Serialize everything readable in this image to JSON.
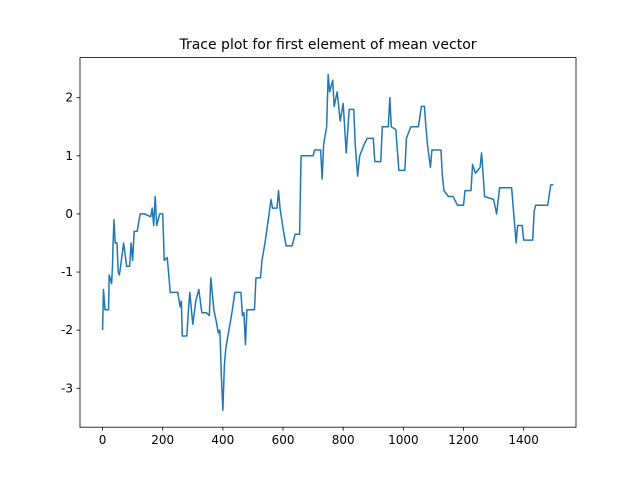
{
  "chart_data": {
    "type": "line",
    "title": "Trace plot for first element of mean vector",
    "x": [
      0,
      3,
      8,
      20,
      22,
      30,
      33,
      35,
      38,
      42,
      48,
      52,
      56,
      60,
      70,
      80,
      90,
      95,
      100,
      105,
      115,
      125,
      140,
      160,
      165,
      170,
      175,
      180,
      190,
      200,
      205,
      215,
      225,
      250,
      258,
      262,
      265,
      280,
      285,
      290,
      300,
      310,
      320,
      330,
      345,
      355,
      360,
      370,
      378,
      385,
      390,
      395,
      400,
      405,
      410,
      420,
      430,
      440,
      460,
      465,
      470,
      475,
      480,
      505,
      510,
      525,
      530,
      540,
      555,
      560,
      565,
      580,
      585,
      590,
      600,
      610,
      630,
      640,
      655,
      660,
      700,
      705,
      725,
      730,
      735,
      745,
      750,
      755,
      765,
      770,
      780,
      790,
      800,
      810,
      820,
      835,
      840,
      848,
      855,
      870,
      880,
      900,
      905,
      925,
      930,
      950,
      955,
      960,
      975,
      985,
      1005,
      1010,
      1025,
      1050,
      1060,
      1070,
      1075,
      1080,
      1090,
      1095,
      1125,
      1130,
      1135,
      1150,
      1165,
      1175,
      1180,
      1200,
      1205,
      1225,
      1230,
      1240,
      1255,
      1260,
      1265,
      1270,
      1300,
      1310,
      1320,
      1360,
      1375,
      1380,
      1395,
      1400,
      1430,
      1435,
      1440,
      1480,
      1490,
      1499
    ],
    "series": [
      {
        "color": "#1f77b4",
        "values": [
          -2.0,
          -1.3,
          -1.65,
          -1.65,
          -1.05,
          -1.2,
          -0.9,
          -0.5,
          -0.1,
          -0.5,
          -0.5,
          -1.0,
          -1.05,
          -0.9,
          -0.5,
          -0.9,
          -0.9,
          -0.5,
          -0.8,
          -0.3,
          -0.3,
          0.0,
          0.0,
          -0.05,
          0.1,
          -0.2,
          0.3,
          -0.2,
          0.0,
          0.0,
          -0.8,
          -0.75,
          -1.35,
          -1.35,
          -1.6,
          -1.5,
          -2.1,
          -2.1,
          -1.7,
          -1.35,
          -1.9,
          -1.5,
          -1.3,
          -1.7,
          -1.7,
          -1.75,
          -1.1,
          -1.65,
          -1.85,
          -2.05,
          -2.0,
          -2.8,
          -3.38,
          -2.6,
          -2.3,
          -2.0,
          -1.7,
          -1.35,
          -1.35,
          -1.75,
          -1.7,
          -2.25,
          -1.65,
          -1.65,
          -1.1,
          -1.1,
          -0.8,
          -0.5,
          0.05,
          0.25,
          0.1,
          0.1,
          0.4,
          0.1,
          -0.25,
          -0.55,
          -0.55,
          -0.35,
          -0.35,
          1.0,
          1.0,
          1.1,
          1.1,
          0.6,
          1.2,
          1.5,
          2.4,
          2.1,
          2.3,
          1.85,
          2.1,
          1.6,
          1.9,
          1.05,
          1.8,
          1.8,
          1.2,
          0.65,
          1.0,
          1.2,
          1.3,
          1.3,
          0.9,
          0.9,
          1.5,
          1.5,
          2.0,
          1.5,
          1.45,
          0.75,
          0.75,
          1.3,
          1.5,
          1.5,
          1.85,
          1.85,
          1.5,
          1.2,
          0.8,
          1.1,
          1.1,
          0.65,
          0.4,
          0.3,
          0.3,
          0.2,
          0.15,
          0.15,
          0.4,
          0.4,
          0.85,
          0.7,
          0.8,
          1.05,
          0.7,
          0.3,
          0.25,
          0.0,
          0.45,
          0.45,
          -0.5,
          -0.2,
          -0.2,
          -0.45,
          -0.45,
          0.05,
          0.15,
          0.15,
          0.5,
          0.5
        ]
      }
    ],
    "xlim": [
      -75,
      1574
    ],
    "ylim": [
      -3.67,
      2.69
    ],
    "xticks": [
      0,
      200,
      400,
      600,
      800,
      1000,
      1200,
      1400
    ],
    "yticks": [
      -3,
      -2,
      -1,
      0,
      1,
      2
    ]
  }
}
